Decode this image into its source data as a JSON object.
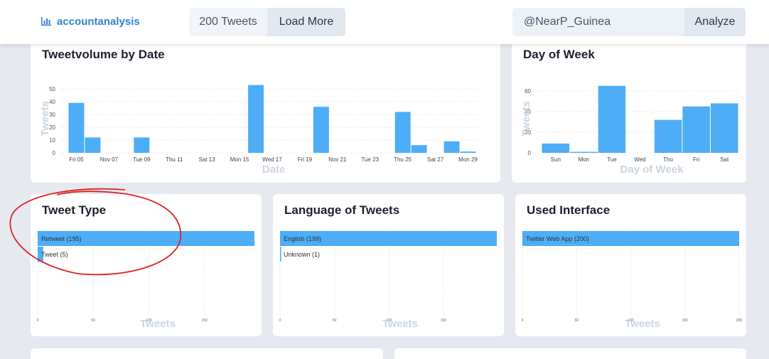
{
  "header": {
    "logo": "accountanalysis",
    "tweet_count": "200 Tweets",
    "load_more": "Load More",
    "account": "@NearP_Guinea",
    "analyze": "Analyze"
  },
  "chart_data": [
    {
      "type": "bar",
      "title": "Tweetvolume by Date",
      "x_label": "Date",
      "y_label": "Tweets",
      "categories": [
        "Fri 05",
        null,
        "Nov 07",
        null,
        "Tue 09",
        null,
        "Thu 11",
        null,
        "Sat 13",
        null,
        "Mon 15",
        null,
        "Wed 17",
        null,
        "Fri 19",
        null,
        "Nov 21",
        null,
        "Tue 23",
        null,
        "Thu 25",
        null,
        "Sat 27",
        null,
        "Mon 29"
      ],
      "values": [
        39,
        12,
        0,
        0,
        12,
        0,
        0,
        0,
        0,
        0,
        0,
        53,
        0,
        0,
        0,
        36,
        0,
        0,
        0,
        0,
        32,
        6,
        0,
        9,
        1
      ],
      "color": "#4dadf7",
      "ylim": [
        0,
        55
      ],
      "yticks": [
        0,
        10,
        20,
        30,
        40,
        50
      ],
      "grid": true
    },
    {
      "type": "bar",
      "title": "Day of Week",
      "x_label": "Day of Week",
      "y_label": "Tweets",
      "categories": [
        "Sun",
        "Mon",
        "Tue",
        "Wed",
        "Thu",
        "Fri",
        "Sat"
      ],
      "values": [
        9,
        1,
        65,
        0,
        32,
        45,
        48
      ],
      "color": "#4dadf7",
      "ylim": [
        0,
        70
      ],
      "yticks": [
        0,
        20,
        40,
        60
      ],
      "grid": true
    },
    {
      "type": "hbar",
      "title": "Tweet Type",
      "x_label": "Tweets",
      "categories": [
        "Retweet (195)",
        "Tweet (5)"
      ],
      "values": [
        195,
        5
      ],
      "color": "#4dadf7",
      "xlim": [
        0,
        195
      ],
      "xticks": [
        0,
        50,
        100,
        150
      ],
      "grid": true
    },
    {
      "type": "hbar",
      "title": "Language of Tweets",
      "x_label": "Tweets",
      "categories": [
        "English (199)",
        "Unknown (1)"
      ],
      "values": [
        199,
        1
      ],
      "color": "#4dadf7",
      "xlim": [
        0,
        199
      ],
      "xticks": [
        0,
        50,
        100,
        150
      ],
      "grid": true
    },
    {
      "type": "hbar",
      "title": "Used Interface",
      "x_label": "Tweets",
      "categories": [
        "Twitter Web App (200)"
      ],
      "values": [
        200
      ],
      "color": "#4dadf7",
      "xlim": [
        0,
        200
      ],
      "xticks": [
        0,
        50,
        100,
        150,
        200
      ],
      "grid": true
    }
  ]
}
